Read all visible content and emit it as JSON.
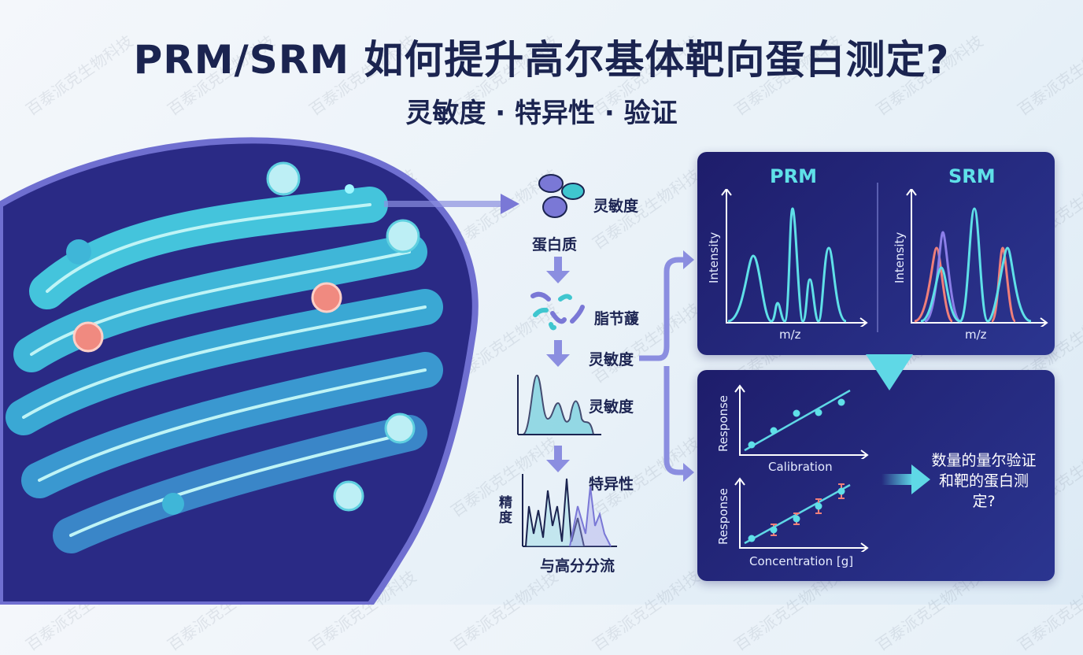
{
  "header": {
    "title": "PRM/SRM 如何提升高尔基体靶向蛋白测定?",
    "subtitle": "灵敏度 · 特异性 · 验证"
  },
  "workflow": {
    "protein_label": "蛋白质",
    "protein_side": "灵敏度",
    "digest_label": "脂节蘐",
    "digest_side": "灵敏度",
    "chrom_side": "灵敏度",
    "spectrum_side": "特异性",
    "spectrum_ylabel": "精度",
    "spectrum_xlabel": "与高分分流"
  },
  "panels": {
    "prm": {
      "title": "PRM",
      "ylabel": "Intensity",
      "xlabel": "m/z"
    },
    "srm": {
      "title": "SRM",
      "ylabel": "Intensity",
      "xlabel": "m/z"
    },
    "calibration": {
      "ylabel": "Response",
      "xlabel": "Calibration"
    },
    "concentration": {
      "ylabel": "Response",
      "xlabel": "Concentration [g]"
    },
    "result": "数量的量尔验证和靶的蛋白测定?"
  },
  "watermark": "百泰派克生物科技",
  "colors": {
    "navy": "#1b2450",
    "cyan": "#5fe0e8",
    "purple": "#7a78d6",
    "panel": "#23247a",
    "coral": "#f07f7a"
  }
}
